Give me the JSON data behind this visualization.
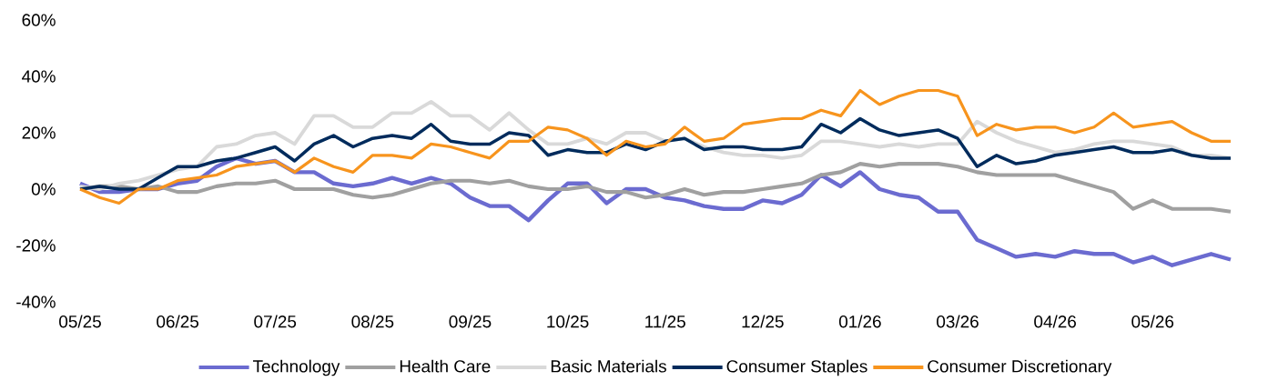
{
  "chart_data": {
    "type": "line",
    "legend": "bottom",
    "grid": false,
    "marker": "none",
    "line_style": "solid",
    "ylim": [
      -40,
      60
    ],
    "categories": [
      "05/25",
      null,
      null,
      null,
      null,
      "06/25",
      null,
      null,
      null,
      null,
      "07/25",
      null,
      null,
      null,
      null,
      "08/25",
      null,
      null,
      null,
      null,
      "09/25",
      null,
      null,
      null,
      null,
      "10/25",
      null,
      null,
      null,
      null,
      "11/25",
      null,
      null,
      null,
      null,
      "12/25",
      null,
      null,
      null,
      null,
      "01/26",
      null,
      null,
      null,
      null,
      "03/26",
      null,
      null,
      null,
      null,
      "04/26",
      null,
      null,
      null,
      null,
      "05/26",
      null,
      null,
      null,
      null
    ],
    "yticks": [
      {
        "value": -40,
        "label": "-40%"
      },
      {
        "value": -20,
        "label": "-20%"
      },
      {
        "value": 0,
        "label": "0%"
      },
      {
        "value": 20,
        "label": "20%"
      },
      {
        "value": 40,
        "label": "40%"
      },
      {
        "value": 60,
        "label": "60%"
      }
    ],
    "series": [
      {
        "name": "Technology",
        "color": "#6b6bd0",
        "values": [
          2,
          -1,
          -1,
          0,
          0,
          2,
          3,
          8,
          11,
          9,
          10,
          6,
          6,
          2,
          1,
          2,
          4,
          2,
          4,
          2,
          -3,
          -6,
          -6,
          -11,
          -4,
          2,
          2,
          -5,
          0,
          0,
          -3,
          -4,
          -6,
          -7,
          -7,
          -4,
          -5,
          -2,
          5,
          1,
          6,
          0,
          -2,
          -3,
          -8,
          -8,
          -18,
          -21,
          -24,
          -23,
          -24,
          -22,
          -23,
          -23,
          -26,
          -24,
          -27,
          -25,
          -23,
          -25
        ]
      },
      {
        "name": "Health Care",
        "color": "#a0a0a0",
        "values": [
          0,
          1,
          1,
          0,
          1,
          -1,
          -1,
          1,
          2,
          2,
          3,
          0,
          0,
          0,
          -2,
          -3,
          -2,
          0,
          2,
          3,
          3,
          2,
          3,
          1,
          0,
          0,
          1,
          -1,
          -1,
          -3,
          -2,
          0,
          -2,
          -1,
          -1,
          0,
          1,
          2,
          5,
          6,
          9,
          8,
          9,
          9,
          9,
          8,
          6,
          5,
          5,
          5,
          5,
          3,
          1,
          -1,
          -7,
          -4,
          -7,
          -7,
          -7,
          -8
        ]
      },
      {
        "name": "Basic Materials",
        "color": "#d9d9d9",
        "values": [
          1,
          0,
          2,
          3,
          5,
          7,
          8,
          15,
          16,
          19,
          20,
          16,
          26,
          26,
          22,
          22,
          27,
          27,
          31,
          26,
          26,
          21,
          27,
          21,
          16,
          16,
          18,
          16,
          20,
          20,
          17,
          18,
          15,
          13,
          12,
          12,
          11,
          12,
          17,
          17,
          16,
          15,
          16,
          15,
          16,
          16,
          24,
          20,
          17,
          15,
          13,
          14,
          16,
          17,
          17,
          16,
          15,
          12,
          12,
          11
        ]
      },
      {
        "name": "Consumer Staples",
        "color": "#002b5c",
        "values": [
          0,
          1,
          0,
          0,
          4,
          8,
          8,
          10,
          11,
          13,
          15,
          10,
          16,
          19,
          15,
          18,
          19,
          18,
          23,
          17,
          16,
          16,
          20,
          19,
          12,
          14,
          13,
          13,
          16,
          14,
          17,
          18,
          14,
          15,
          15,
          14,
          14,
          15,
          23,
          20,
          25,
          21,
          19,
          20,
          21,
          18,
          8,
          12,
          9,
          10,
          12,
          13,
          14,
          15,
          13,
          13,
          14,
          12,
          11,
          11
        ]
      },
      {
        "name": "Consumer Discretionary",
        "color": "#f7941d",
        "values": [
          0,
          -3,
          -5,
          0,
          0,
          3,
          4,
          5,
          8,
          9,
          10,
          6,
          11,
          8,
          6,
          12,
          12,
          11,
          16,
          15,
          13,
          11,
          17,
          17,
          22,
          21,
          18,
          12,
          17,
          15,
          16,
          22,
          17,
          18,
          23,
          24,
          25,
          25,
          28,
          26,
          35,
          30,
          33,
          35,
          35,
          33,
          19,
          23,
          21,
          22,
          22,
          20,
          22,
          27,
          22,
          23,
          24,
          20,
          17,
          17
        ]
      }
    ]
  }
}
